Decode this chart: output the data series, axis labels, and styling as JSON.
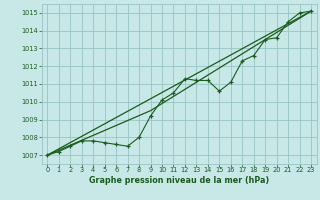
{
  "bg_color": "#c8e8e8",
  "grid_color": "#99c4c4",
  "line_color": "#1a5c1a",
  "title": "Graphe pression niveau de la mer (hPa)",
  "title_color": "#1a5c1a",
  "xlim": [
    -0.5,
    23.5
  ],
  "ylim": [
    1006.5,
    1015.5
  ],
  "yticks": [
    1007,
    1008,
    1009,
    1010,
    1011,
    1012,
    1013,
    1014,
    1015
  ],
  "xticks": [
    0,
    1,
    2,
    3,
    4,
    5,
    6,
    7,
    8,
    9,
    10,
    11,
    12,
    13,
    14,
    15,
    16,
    17,
    18,
    19,
    20,
    21,
    22,
    23
  ],
  "data_x": [
    0,
    1,
    2,
    3,
    4,
    5,
    6,
    7,
    8,
    9,
    10,
    11,
    12,
    13,
    14,
    15,
    16,
    17,
    18,
    19,
    20,
    21,
    22,
    23
  ],
  "data_y": [
    1007.0,
    1007.2,
    1007.5,
    1007.8,
    1007.8,
    1007.7,
    1007.6,
    1007.5,
    1008.0,
    1009.2,
    1010.1,
    1010.5,
    1011.3,
    1011.2,
    1011.2,
    1010.6,
    1011.1,
    1012.3,
    1012.6,
    1013.5,
    1013.6,
    1014.5,
    1015.0,
    1015.1
  ],
  "trend1_x": [
    0,
    23
  ],
  "trend1_y": [
    1007.0,
    1015.1
  ],
  "trend2_x": [
    0,
    9,
    23
  ],
  "trend2_y": [
    1007.0,
    1009.5,
    1015.1
  ]
}
